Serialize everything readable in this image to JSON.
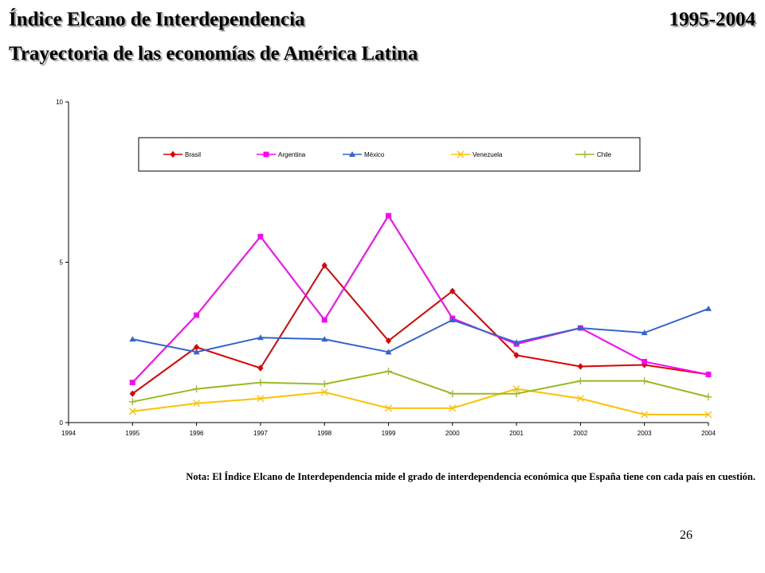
{
  "slide": {
    "title": "Índice Elcano de Interdependencia",
    "years": "1995-2004",
    "subtitle": "Trayectoria de las economías de América Latina",
    "note": "Nota: El Índice Elcano de Interdependencia mide el grado de interdependencia económica que España tiene con cada país en cuestión.",
    "page_number": "26"
  },
  "chart_data": {
    "type": "line",
    "x": [
      1995,
      1996,
      1997,
      1998,
      1999,
      2000,
      2001,
      2002,
      2003,
      2004
    ],
    "x_ticks": [
      "1994",
      "1995",
      "1996",
      "1997",
      "1998",
      "1999",
      "2000",
      "2001",
      "2002",
      "2003",
      "2004"
    ],
    "xlim": [
      1994,
      2004
    ],
    "ylim": [
      0,
      10
    ],
    "y_ticks": [
      "0",
      "5",
      "10"
    ],
    "y_tick_values": [
      0,
      5,
      10
    ],
    "grid": false,
    "legend_position": "top",
    "series": [
      {
        "name": "Brasil",
        "color": "#e00000",
        "marker": "diamond",
        "values": [
          0.9,
          2.35,
          1.7,
          4.9,
          2.55,
          4.1,
          2.1,
          1.75,
          1.8,
          1.5
        ]
      },
      {
        "name": "Argentina",
        "color": "#ff00ff",
        "marker": "square",
        "values": [
          1.25,
          3.35,
          5.8,
          3.2,
          6.45,
          3.25,
          2.45,
          2.95,
          1.9,
          1.5
        ]
      },
      {
        "name": "México",
        "color": "#3366cc",
        "marker": "triangle",
        "values": [
          2.6,
          2.2,
          2.65,
          2.6,
          2.2,
          3.2,
          2.5,
          2.95,
          2.8,
          3.55
        ]
      },
      {
        "name": "Venezuela",
        "color": "#ffc000",
        "marker": "x",
        "values": [
          0.35,
          0.6,
          0.75,
          0.95,
          0.45,
          0.45,
          1.05,
          0.75,
          0.25,
          0.25
        ]
      },
      {
        "name": "Chile",
        "color": "#99bb22",
        "marker": "plus",
        "values": [
          0.65,
          1.05,
          1.25,
          1.2,
          1.6,
          0.9,
          0.9,
          1.3,
          1.3,
          0.8
        ]
      }
    ]
  }
}
